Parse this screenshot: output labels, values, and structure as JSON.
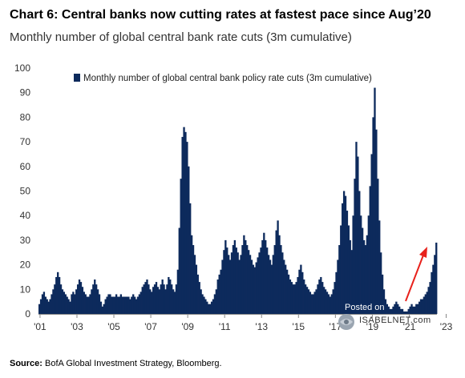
{
  "header": {
    "title": "Chart 6: Central banks now cutting rates at fastest pace since Aug’20",
    "subtitle": "Monthly number of global central bank rate cuts (3m cumulative)"
  },
  "footer": {
    "source_label": "Source:",
    "source_text": "BofA Global Investment Strategy, Bloomberg."
  },
  "watermark": {
    "posted": "Posted on",
    "site": "ISABELNET.com"
  },
  "colors": {
    "bars": "#0d2a5c",
    "arrow": "#e8211b",
    "axis": "#888888"
  },
  "chart_data": {
    "type": "bar",
    "title": "Chart 6: Central banks now cutting rates at fastest pace since Aug’20",
    "subtitle": "Monthly number of global central bank rate cuts (3m cumulative)",
    "xlabel": "",
    "ylabel": "",
    "ylim": [
      0,
      100
    ],
    "yticks": [
      0,
      10,
      20,
      30,
      40,
      50,
      60,
      70,
      80,
      90,
      100
    ],
    "xticks": [
      "'01",
      "'03",
      "'05",
      "'07",
      "'09",
      "'11",
      "'13",
      "'15",
      "'17",
      "'19",
      "'21",
      "'23"
    ],
    "legend": {
      "position": "top-right",
      "entries": [
        "Monthly number of global central bank policy rate cuts (3m cumulative)"
      ]
    },
    "grid": false,
    "series": [
      {
        "name": "Monthly number of global central bank policy rate cuts (3m cumulative)",
        "start": "2000-12",
        "frequency": "monthly",
        "values": [
          4,
          6,
          8,
          9,
          7,
          6,
          5,
          6,
          8,
          10,
          12,
          15,
          17,
          15,
          12,
          10,
          9,
          8,
          7,
          6,
          5,
          8,
          9,
          8,
          10,
          12,
          14,
          13,
          11,
          9,
          8,
          7,
          7,
          8,
          10,
          12,
          14,
          12,
          10,
          8,
          5,
          3,
          4,
          6,
          7,
          8,
          8,
          7,
          7,
          7,
          8,
          7,
          7,
          8,
          7,
          7,
          7,
          7,
          7,
          6,
          7,
          8,
          7,
          6,
          7,
          8,
          9,
          11,
          12,
          13,
          14,
          12,
          10,
          9,
          11,
          12,
          13,
          11,
          10,
          12,
          14,
          12,
          10,
          12,
          15,
          14,
          12,
          10,
          9,
          12,
          18,
          35,
          55,
          72,
          76,
          74,
          70,
          60,
          45,
          32,
          28,
          24,
          20,
          16,
          13,
          10,
          8,
          7,
          6,
          5,
          4,
          4,
          5,
          6,
          8,
          10,
          14,
          16,
          18,
          22,
          26,
          30,
          27,
          24,
          22,
          25,
          28,
          30,
          27,
          25,
          22,
          24,
          28,
          32,
          30,
          28,
          26,
          24,
          22,
          20,
          19,
          21,
          23,
          25,
          27,
          30,
          33,
          30,
          27,
          24,
          22,
          20,
          24,
          28,
          34,
          38,
          32,
          28,
          25,
          22,
          20,
          18,
          16,
          14,
          13,
          12,
          12,
          13,
          15,
          18,
          20,
          17,
          14,
          12,
          11,
          10,
          9,
          8,
          8,
          9,
          10,
          12,
          14,
          15,
          13,
          11,
          10,
          9,
          8,
          7,
          8,
          10,
          13,
          17,
          22,
          28,
          36,
          45,
          50,
          48,
          42,
          36,
          30,
          26,
          40,
          55,
          70,
          64,
          50,
          40,
          35,
          30,
          28,
          32,
          40,
          52,
          65,
          80,
          92,
          75,
          55,
          38,
          25,
          16,
          10,
          6,
          4,
          3,
          2,
          2,
          3,
          4,
          5,
          4,
          3,
          2,
          2,
          1,
          1,
          1,
          2,
          3,
          4,
          3,
          3,
          4,
          4,
          5,
          6,
          6,
          7,
          8,
          9,
          11,
          13,
          17,
          20,
          24,
          29
        ]
      }
    ]
  }
}
